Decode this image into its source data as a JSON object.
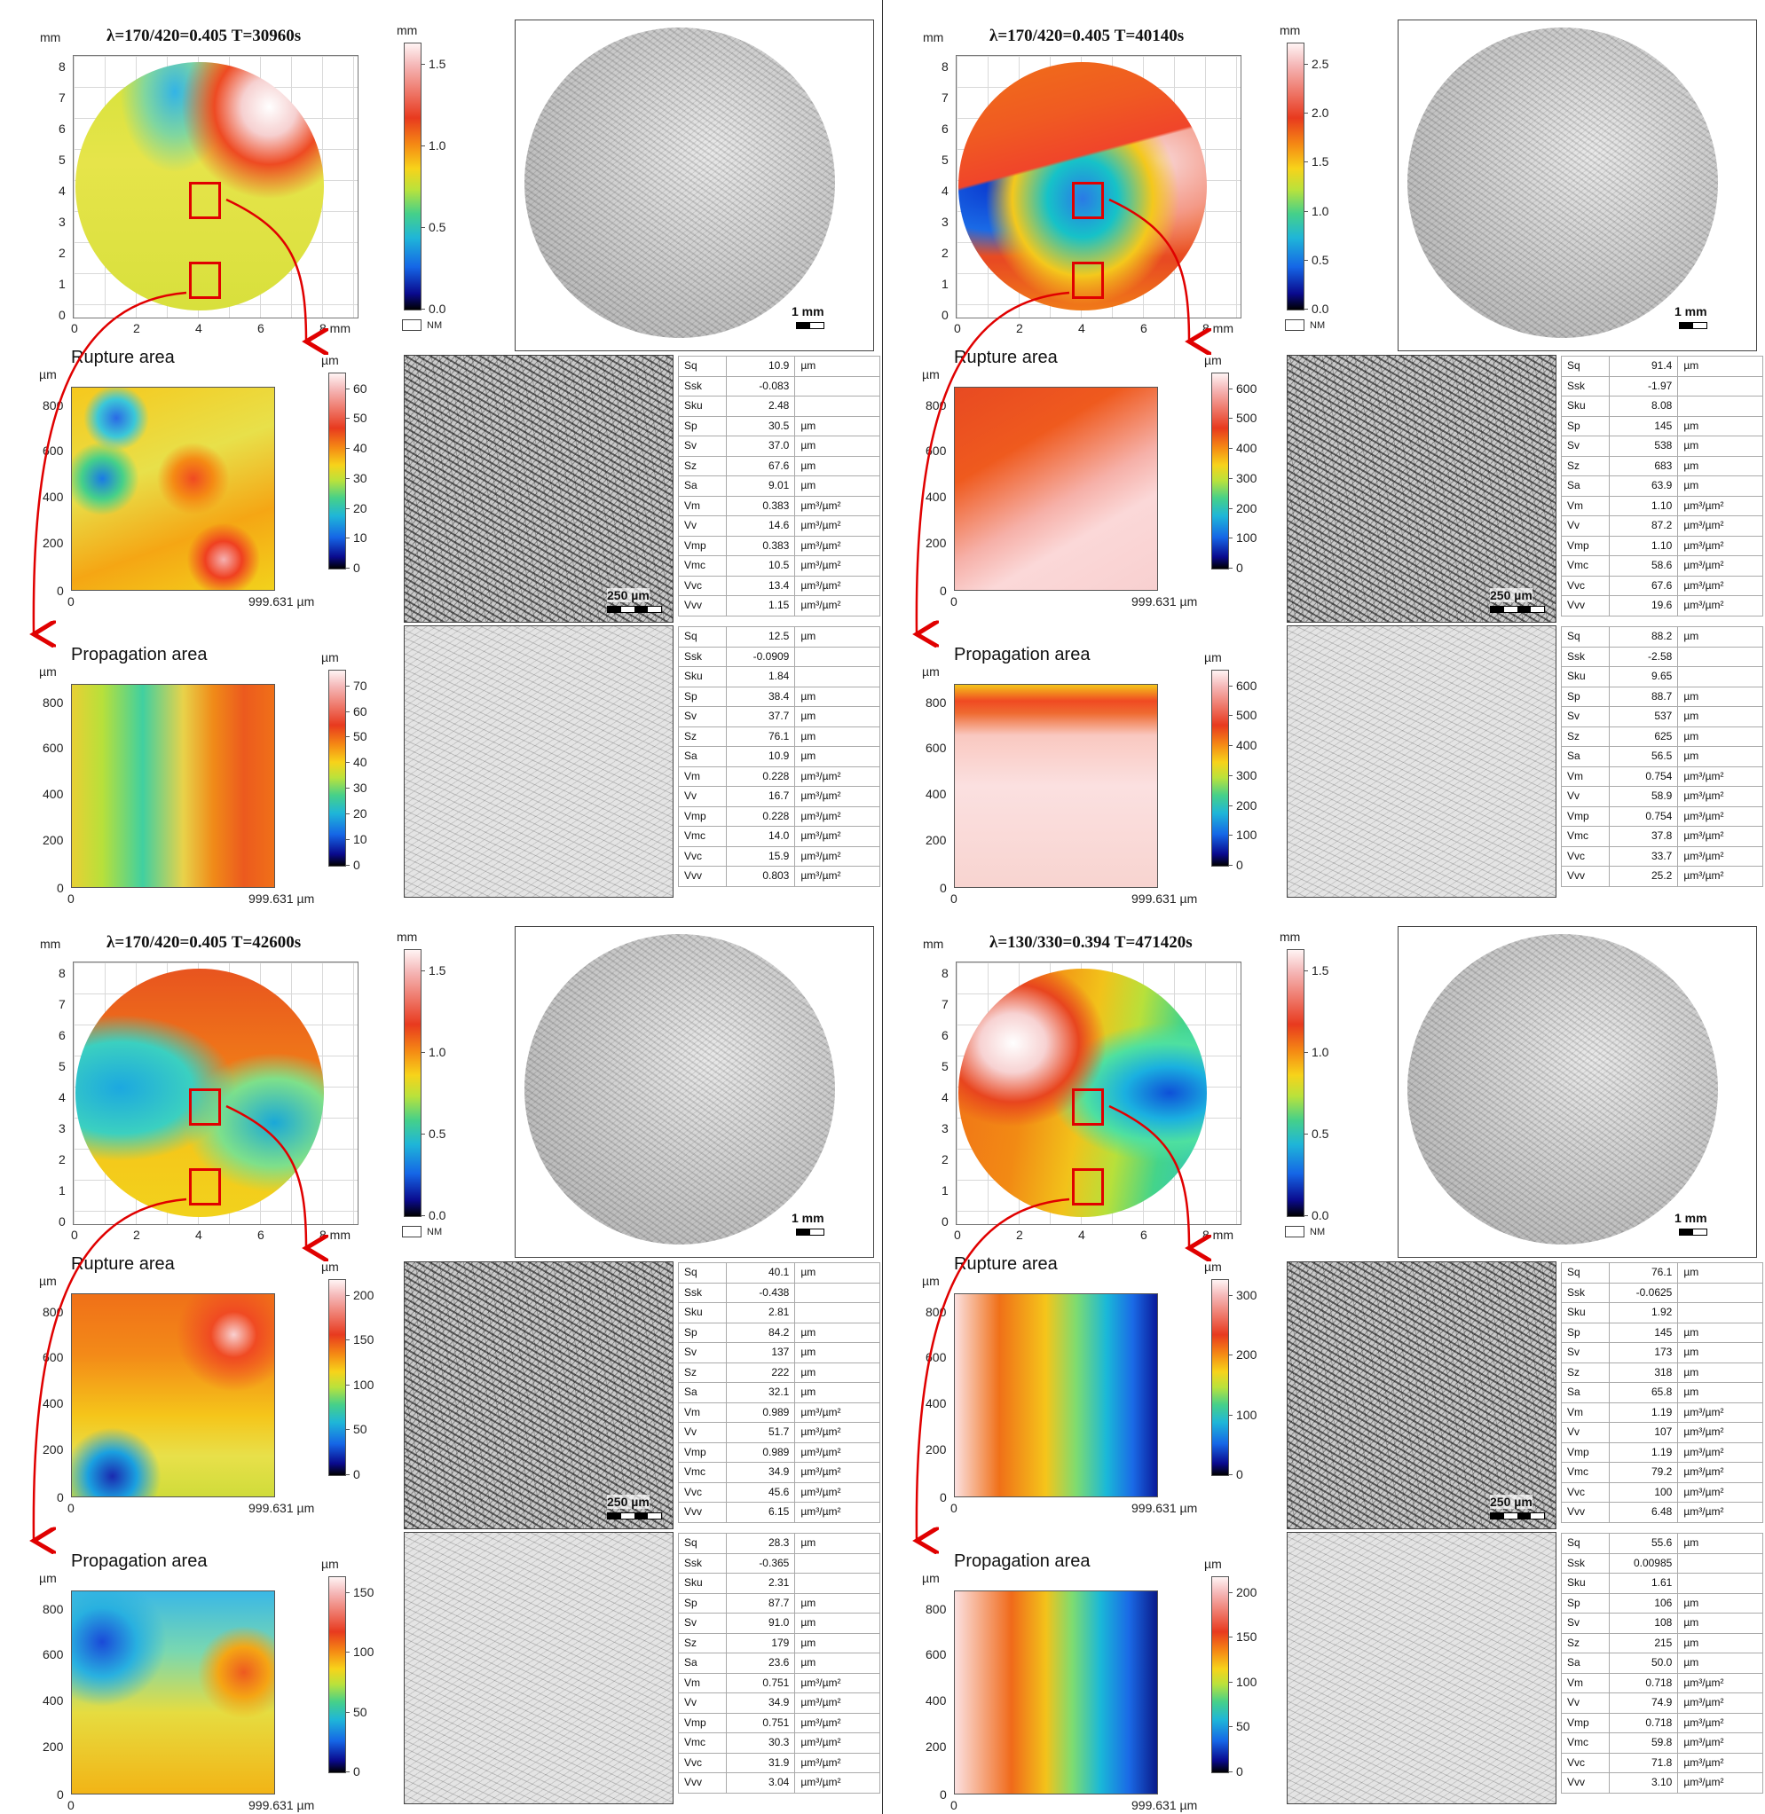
{
  "unit_mm": "mm",
  "unit_um": "µm",
  "nm_label": "NM",
  "x_ticks_mm": [
    "0",
    "2",
    "4",
    "6",
    "8 mm"
  ],
  "y_ticks_mm": [
    "0",
    "1",
    "2",
    "3",
    "4",
    "5",
    "6",
    "7",
    "8"
  ],
  "area_x_end": "999.631 µm",
  "area_y_ticks": [
    "0",
    "200",
    "400",
    "600",
    "800"
  ],
  "scale_1mm": "1 mm",
  "scale_250um": "250 µm",
  "param_names": [
    "Sq",
    "Ssk",
    "Sku",
    "Sp",
    "Sv",
    "Sz",
    "Sa",
    "Vm",
    "Vv",
    "Vmp",
    "Vmc",
    "Vvc",
    "Vvv"
  ],
  "param_units": [
    "µm",
    "",
    "",
    "µm",
    "µm",
    "µm",
    "µm",
    "µm³/µm²",
    "µm³/µm²",
    "µm³/µm²",
    "µm³/µm²",
    "µm³/µm²",
    "µm³/µm²"
  ],
  "rupture_label": "Rupture area",
  "propagation_label": "Propagation area",
  "panels": [
    {
      "title": "λ=170/420=0.405  T=30960s",
      "main_colorbar_ticks": [
        "1.5",
        "1.0",
        "0.5",
        "0.0"
      ],
      "rupture_colorbar_ticks": [
        "60",
        "50",
        "40",
        "30",
        "20",
        "10",
        "0"
      ],
      "propagation_colorbar_ticks": [
        "70",
        "60",
        "50",
        "40",
        "30",
        "20",
        "10",
        "0"
      ],
      "rupture_params": [
        "10.9",
        "-0.083",
        "2.48",
        "30.5",
        "37.0",
        "67.6",
        "9.01",
        "0.383",
        "14.6",
        "0.383",
        "10.5",
        "13.4",
        "1.15"
      ],
      "propagation_params": [
        "12.5",
        "-0.0909",
        "1.84",
        "38.4",
        "37.7",
        "76.1",
        "10.9",
        "0.228",
        "16.7",
        "0.228",
        "14.0",
        "15.9",
        "0.803"
      ]
    },
    {
      "title": "λ=170/420=0.405  T=40140s",
      "main_colorbar_ticks": [
        "2.5",
        "2.0",
        "1.5",
        "1.0",
        "0.5",
        "0.0"
      ],
      "rupture_colorbar_ticks": [
        "600",
        "500",
        "400",
        "300",
        "200",
        "100",
        "0"
      ],
      "propagation_colorbar_ticks": [
        "600",
        "500",
        "400",
        "300",
        "200",
        "100",
        "0"
      ],
      "rupture_params": [
        "91.4",
        "-1.97",
        "8.08",
        "145",
        "538",
        "683",
        "63.9",
        "1.10",
        "87.2",
        "1.10",
        "58.6",
        "67.6",
        "19.6"
      ],
      "propagation_params": [
        "88.2",
        "-2.58",
        "9.65",
        "88.7",
        "537",
        "625",
        "56.5",
        "0.754",
        "58.9",
        "0.754",
        "37.8",
        "33.7",
        "25.2"
      ]
    },
    {
      "title": "λ=170/420=0.405  T=42600s",
      "main_colorbar_ticks": [
        "1.5",
        "1.0",
        "0.5",
        "0.0"
      ],
      "rupture_colorbar_ticks": [
        "200",
        "150",
        "100",
        "50",
        "0"
      ],
      "propagation_colorbar_ticks": [
        "150",
        "100",
        "50",
        "0"
      ],
      "rupture_params": [
        "40.1",
        "-0.438",
        "2.81",
        "84.2",
        "137",
        "222",
        "32.1",
        "0.989",
        "51.7",
        "0.989",
        "34.9",
        "45.6",
        "6.15"
      ],
      "propagation_params": [
        "28.3",
        "-0.365",
        "2.31",
        "87.7",
        "91.0",
        "179",
        "23.6",
        "0.751",
        "34.9",
        "0.751",
        "30.3",
        "31.9",
        "3.04"
      ]
    },
    {
      "title": "λ=130/330=0.394  T=471420s",
      "main_colorbar_ticks": [
        "1.5",
        "1.0",
        "0.5",
        "0.0"
      ],
      "rupture_colorbar_ticks": [
        "300",
        "200",
        "100",
        "0"
      ],
      "propagation_colorbar_ticks": [
        "200",
        "150",
        "100",
        "50",
        "0"
      ],
      "rupture_params": [
        "76.1",
        "-0.0625",
        "1.92",
        "145",
        "173",
        "318",
        "65.8",
        "1.19",
        "107",
        "1.19",
        "79.2",
        "100",
        "6.48"
      ],
      "propagation_params": [
        "55.6",
        "0.00985",
        "1.61",
        "106",
        "108",
        "215",
        "50.0",
        "0.718",
        "74.9",
        "0.718",
        "59.8",
        "71.8",
        "3.10"
      ]
    }
  ]
}
